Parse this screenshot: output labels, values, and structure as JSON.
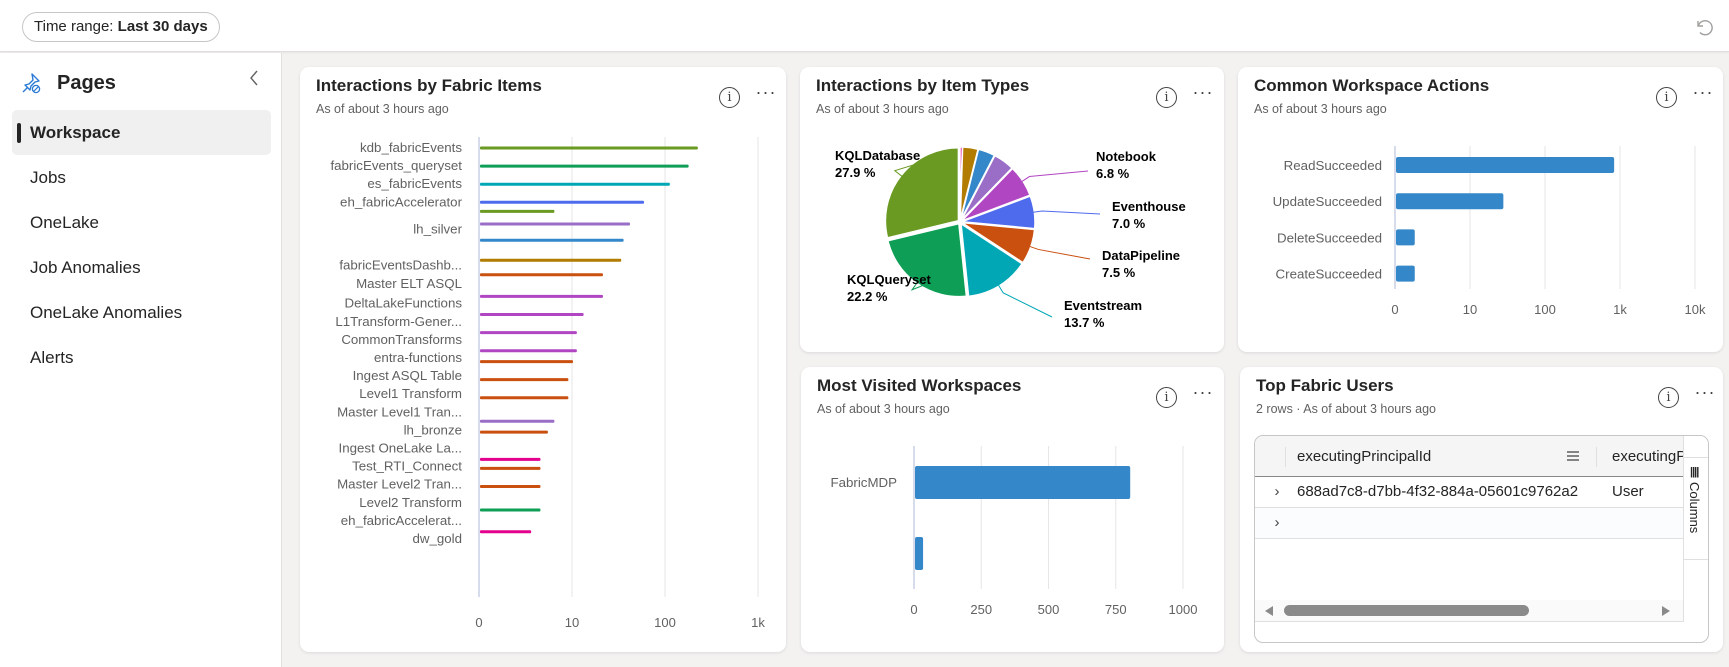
{
  "toolbar": {
    "time_range_label": "Time range:",
    "time_range_value": "Last 30 days",
    "undo_icon": "undo-icon"
  },
  "sidebar": {
    "title": "Pages",
    "items": [
      {
        "label": "Workspace",
        "active": true
      },
      {
        "label": "Jobs",
        "active": false
      },
      {
        "label": "OneLake",
        "active": false
      },
      {
        "label": "Job Anomalies",
        "active": false
      },
      {
        "label": "OneLake Anomalies",
        "active": false
      },
      {
        "label": "Alerts",
        "active": false
      }
    ]
  },
  "colors": {
    "bar_blue": "#3487c8",
    "grid": "#e6e6e6",
    "axis": "#c9d0e6"
  },
  "cards": {
    "fabric_items": {
      "title": "Interactions by Fabric Items",
      "subtitle": "As of about 3 hours ago"
    },
    "item_types": {
      "title": "Interactions by Item Types",
      "subtitle": "As of about 3 hours ago"
    },
    "workspace_actions": {
      "title": "Common Workspace Actions",
      "subtitle": "As of about 3 hours ago"
    },
    "visited_workspaces": {
      "title": "Most Visited Workspaces",
      "subtitle": "As of about 3 hours ago"
    },
    "top_users": {
      "title": "Top Fabric Users",
      "subtitle": "2 rows · As of about 3 hours ago",
      "columns": [
        "executingPrincipalId",
        "executingP"
      ],
      "rows": [
        {
          "executingPrincipalId": "688ad7c8-d7bb-4f32-884a-05601c9762a2",
          "executingPrincipalType": "User"
        },
        {
          "executingPrincipalId": "",
          "executingPrincipalType": ""
        }
      ],
      "columns_panel_label": "Columns"
    }
  },
  "chart_data": [
    {
      "type": "bar",
      "orientation": "horizontal",
      "title": "Interactions by Fabric Items",
      "subtitle": "As of about 3 hours ago",
      "x_scale": "symlog",
      "x_ticks": [
        "0",
        "10",
        "100",
        "1k"
      ],
      "x_tick_values": [
        0,
        10,
        100,
        1000
      ],
      "xlim": [
        0,
        1000
      ],
      "grid": true,
      "categories": [
        "kdb_fabricEvents",
        "fabricEvents_queryset",
        "es_fabricEvents",
        "eh_fabricAccelerator",
        "lh_silver",
        "fabricEventsDashb...",
        "Master ELT ASQL",
        "DeltaLakeFunctions",
        "L1Transform-Gener...",
        "CommonTransforms",
        "entra-functions",
        "Ingest ASQL Table",
        "Level1 Transform",
        "Master Level1 Tran...",
        "lh_bronze",
        "Ingest OneLake La...",
        "Test_RTI_Connect",
        "Master Level2 Tran...",
        "Level2 Transform",
        "eh_fabricAccelerat...",
        "dw_gold"
      ],
      "bars": [
        {
          "category": "kdb_fabricEvents",
          "value": 220,
          "color": "#6b9a23",
          "slot": 0
        },
        {
          "category": "fabricEvents_queryset",
          "value": 175,
          "color": "#0e9e55",
          "slot": 1
        },
        {
          "category": "es_fabricEvents",
          "value": 110,
          "color": "#02a7b5",
          "slot": 2
        },
        {
          "category": "eh_fabricAccelerator",
          "value": 58,
          "color": "#4f6bed",
          "slot": 3
        },
        {
          "category": "eh_fabricAccelerator",
          "value": 8,
          "color": "#6b9a23",
          "slot": 3.5
        },
        {
          "category": "lh_silver",
          "value": 41,
          "color": "#9a6dc6",
          "slot": 4.2
        },
        {
          "category": "lh_silver",
          "value": 35,
          "color": "#3487c8",
          "slot": 5.1
        },
        {
          "category": "fabricEventsDashb...",
          "value": 33,
          "color": "#b27c00",
          "slot": 6.2
        },
        {
          "category": "Master ELT ASQL",
          "value": 21,
          "color": "#ca5010",
          "slot": 7
        },
        {
          "category": "DeltaLakeFunctions",
          "value": 21,
          "color": "#b146c2",
          "slot": 8.2
        },
        {
          "category": "L1Transform-Gener...",
          "value": 13,
          "color": "#b146c2",
          "slot": 9.2
        },
        {
          "category": "CommonTransforms",
          "value": 11,
          "color": "#b146c2",
          "slot": 10.2
        },
        {
          "category": "entra-functions",
          "value": 11,
          "color": "#b146c2",
          "slot": 11.2
        },
        {
          "category": "Ingest ASQL Table",
          "value": 10,
          "color": "#ca5010",
          "slot": 11.8
        },
        {
          "category": "Level1 Transform",
          "value": 9.5,
          "color": "#ca5010",
          "slot": 12.8
        },
        {
          "category": "Master Level1 Tran...",
          "value": 9.5,
          "color": "#ca5010",
          "slot": 13.8
        },
        {
          "category": "lh_bronze",
          "value": 8,
          "color": "#9a6dc6",
          "slot": 15.1
        },
        {
          "category": "Ingest OneLake La...",
          "value": 7.3,
          "color": "#ca5010",
          "slot": 15.7
        },
        {
          "category": "Test_RTI_Connect",
          "value": 6.5,
          "color": "#e3008c",
          "slot": 17.2
        },
        {
          "category": "Master Level2 Tran...",
          "value": 6.5,
          "color": "#ca5010",
          "slot": 17.7
        },
        {
          "category": "Level2 Transform",
          "value": 6.5,
          "color": "#ca5010",
          "slot": 18.7
        },
        {
          "category": "eh_fabricAccelerat...",
          "value": 6.5,
          "color": "#0e9e55",
          "slot": 20
        },
        {
          "category": "dw_gold",
          "value": 5.5,
          "color": "#e3008c",
          "slot": 21.2
        }
      ]
    },
    {
      "type": "pie",
      "title": "Interactions by Item Types",
      "subtitle": "As of about 3 hours ago",
      "slices": [
        {
          "label": "",
          "value": 0.5,
          "color": "#e3008c",
          "show_label": false
        },
        {
          "label": "",
          "value": 3.3,
          "color": "#b27c00",
          "show_label": false
        },
        {
          "label": "",
          "value": 3.6,
          "color": "#3487c8",
          "show_label": false
        },
        {
          "label": "",
          "value": 4.5,
          "color": "#9a6dc6",
          "show_label": false
        },
        {
          "label": "Notebook",
          "value": 6.8,
          "display": "6.8 %",
          "color": "#b146c2",
          "show_label": true
        },
        {
          "label": "Eventhouse",
          "value": 7.0,
          "display": "7.0 %",
          "color": "#4f6bed",
          "show_label": true
        },
        {
          "label": "DataPipeline",
          "value": 7.5,
          "display": "7.5 %",
          "color": "#ca5010",
          "show_label": true
        },
        {
          "label": "Eventstream",
          "value": 13.7,
          "display": "13.7 %",
          "color": "#02a7b5",
          "show_label": true
        },
        {
          "label": "KQLQueryset",
          "value": 22.2,
          "display": "22.2 %",
          "color": "#0e9e55",
          "show_label": true
        },
        {
          "label": "KQLDatabase",
          "value": 27.9,
          "display": "27.9 %",
          "color": "#6b9a23",
          "show_label": true
        }
      ]
    },
    {
      "type": "bar",
      "orientation": "horizontal",
      "title": "Common Workspace Actions",
      "subtitle": "As of about 3 hours ago",
      "x_scale": "symlog",
      "x_ticks": [
        "0",
        "10",
        "100",
        "1k",
        "10k"
      ],
      "x_tick_values": [
        0,
        10,
        100,
        1000,
        10000
      ],
      "xlim": [
        0,
        10000
      ],
      "grid": true,
      "categories": [
        "ReadSucceeded",
        "UpdateSucceeded",
        "DeleteSucceeded",
        "CreateSucceeded"
      ],
      "values": [
        810,
        27,
        2.5,
        2.5
      ],
      "color": "#3487c8"
    },
    {
      "type": "bar",
      "orientation": "horizontal",
      "title": "Most Visited Workspaces",
      "subtitle": "As of about 3 hours ago",
      "x_scale": "linear",
      "x_ticks": [
        "0",
        "250",
        "500",
        "750",
        "1000"
      ],
      "x_tick_values": [
        0,
        250,
        500,
        750,
        1000
      ],
      "xlim": [
        0,
        1000
      ],
      "grid": true,
      "categories": [
        "FabricMDP",
        ""
      ],
      "values": [
        800,
        30
      ],
      "color": "#3487c8"
    }
  ]
}
